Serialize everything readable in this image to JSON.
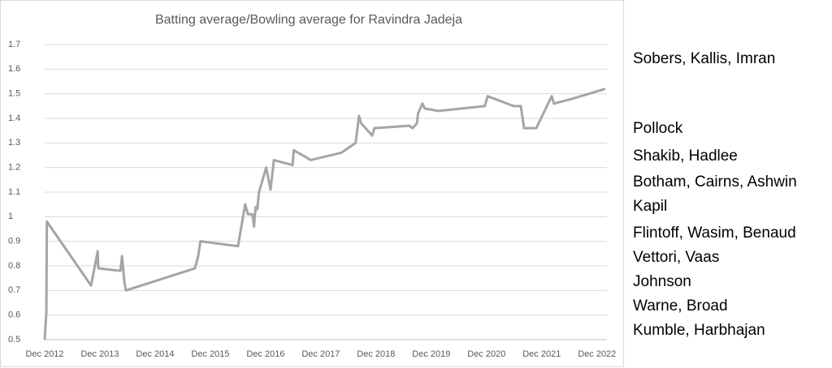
{
  "chart_data": {
    "type": "line",
    "title": "Batting average/Bowling average for Ravindra Jadeja",
    "x": [
      2012.92,
      2012.95,
      2012.96,
      2013.76,
      2013.88,
      2013.89,
      2014.29,
      2014.32,
      2014.36,
      2014.39,
      2015.64,
      2015.7,
      2015.74,
      2016.42,
      2016.55,
      2016.6,
      2016.68,
      2016.71,
      2016.74,
      2016.77,
      2016.8,
      2016.93,
      2017.01,
      2017.07,
      2017.41,
      2017.43,
      2017.67,
      2017.73,
      2018.29,
      2018.55,
      2018.61,
      2018.65,
      2018.85,
      2018.89,
      2019.52,
      2019.58,
      2019.66,
      2019.68,
      2019.76,
      2019.8,
      2020.05,
      2020.89,
      2020.94,
      2021.41,
      2021.54,
      2021.6,
      2021.82,
      2022.1,
      2022.14,
      2022.48,
      2023.07
    ],
    "values": [
      0.5,
      0.61,
      0.98,
      0.72,
      0.86,
      0.79,
      0.78,
      0.84,
      0.74,
      0.7,
      0.79,
      0.84,
      0.9,
      0.88,
      1.05,
      1.01,
      1.01,
      0.96,
      1.04,
      1.03,
      1.1,
      1.2,
      1.11,
      1.23,
      1.21,
      1.27,
      1.24,
      1.23,
      1.26,
      1.3,
      1.41,
      1.38,
      1.33,
      1.36,
      1.37,
      1.36,
      1.38,
      1.42,
      1.46,
      1.44,
      1.43,
      1.45,
      1.49,
      1.45,
      1.45,
      1.36,
      1.36,
      1.49,
      1.46,
      1.48,
      1.52
    ],
    "color": "#a5a5a5",
    "xlim": [
      2012.92,
      2023.1
    ],
    "xticks": [
      {
        "value": 2012.92,
        "label": "Dec 2012"
      },
      {
        "value": 2013.92,
        "label": "Dec 2013"
      },
      {
        "value": 2014.92,
        "label": "Dec 2014"
      },
      {
        "value": 2015.92,
        "label": "Dec 2015"
      },
      {
        "value": 2016.92,
        "label": "Dec 2016"
      },
      {
        "value": 2017.92,
        "label": "Dec 2017"
      },
      {
        "value": 2018.92,
        "label": "Dec 2018"
      },
      {
        "value": 2019.92,
        "label": "Dec 2019"
      },
      {
        "value": 2020.92,
        "label": "Dec 2020"
      },
      {
        "value": 2021.92,
        "label": "Dec 2021"
      },
      {
        "value": 2022.92,
        "label": "Dec 2022"
      }
    ],
    "ylim": [
      0.5,
      1.7
    ],
    "yticks": [
      0.5,
      0.6,
      0.7,
      0.8,
      0.9,
      1,
      1.1,
      1.2,
      1.3,
      1.4,
      1.5,
      1.6,
      1.7
    ],
    "grid": true,
    "annotations": [
      "Sobers, Kallis, Imran",
      "Pollock",
      "Shakib, Hadlee",
      "Botham, Cairns, Ashwin",
      "Kapil",
      "Flintoff, Wasim, Benaud",
      "Vettori, Vaas",
      "Johnson",
      "Warne, Broad",
      "Kumble, Harbhajan"
    ]
  }
}
